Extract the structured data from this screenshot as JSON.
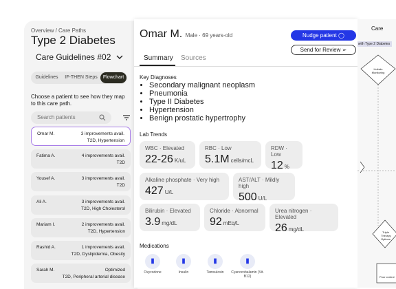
{
  "sidebar": {
    "breadcrumb": "Overview / Care Paths",
    "title": "Type 2 Diabetes",
    "dropdown": "Care Guidelines #02",
    "tabs": [
      "Guidelines",
      "IF-THEN Steps",
      "Flowchart"
    ],
    "prompt": "Choose a patient to see how they map to this care path.",
    "search": "Search patients",
    "patients": [
      {
        "name": "Omar M.",
        "status": "3 improvements avail.",
        "conditions": "T2D, Hypertension"
      },
      {
        "name": "Fatima A.",
        "status": "4 improvements avail.",
        "conditions": "T2D"
      },
      {
        "name": "Yousef A.",
        "status": "3 improvements avail.",
        "conditions": "T2D"
      },
      {
        "name": "Ali A.",
        "status": "3 improvements avail.",
        "conditions": "T2D, High Cholesterol"
      },
      {
        "name": "Mariam I.",
        "status": "2 improvements avail.",
        "conditions": "T2D, Hypertension"
      },
      {
        "name": "Rashid A.",
        "status": "1 improvements avail.",
        "conditions": "T2D, Dyslipidemia, Obesity"
      },
      {
        "name": "Sarah M.",
        "status": "Optimized",
        "conditions": "T2D, Peripheral arterial disease"
      }
    ]
  },
  "patient": {
    "name": "Omar M.",
    "meta": "Male · 69 years-old",
    "buttons": [
      "Nudge patient",
      "Send for Review"
    ],
    "tabs": [
      "Summary",
      "Sources"
    ],
    "diagnoses_title": "Key Diagnoses",
    "diagnoses": [
      "Secondary malignant neoplasm",
      "Pneumonia",
      "Type II Diabetes",
      "Hypertension",
      "Benign prostatic hypertrophy"
    ],
    "labs_title": "Lab Trends",
    "labs": [
      {
        "label": "WBC · Elevated",
        "value": "22-26",
        "unit": "K/uL"
      },
      {
        "label": "RBC · Low",
        "value": "5.1M",
        "unit": "cells/mcL"
      },
      {
        "label": "RDW · Low",
        "value": "12",
        "unit": "%"
      },
      {
        "label": "Alkaline phosphate · Very high",
        "value": "427",
        "unit": "U/L"
      },
      {
        "label": "AST/ALT · Mildly high",
        "value": "500",
        "unit": "U/L"
      },
      {
        "label": "Bilirubin · Elevated",
        "value": "3.9",
        "unit": "mg/dL"
      },
      {
        "label": "Chloride · Abnormal",
        "value": "92",
        "unit": "mEq/L"
      },
      {
        "label": "Urea nitrogen · Elevated",
        "value": "26",
        "unit": "mg/dL"
      }
    ],
    "medications_title": "Medications",
    "medications": [
      "Oxycodone",
      "Insulin",
      "Tamsulosin",
      "Cyanocobalamin (Vit. B12)"
    ]
  },
  "flowchart": {
    "title": "Care",
    "subtitle": "s with Type 2 Diabetes",
    "nodes": [
      "Holistic Monitoring",
      "Triple Therapy Options",
      "Poor control"
    ]
  }
}
